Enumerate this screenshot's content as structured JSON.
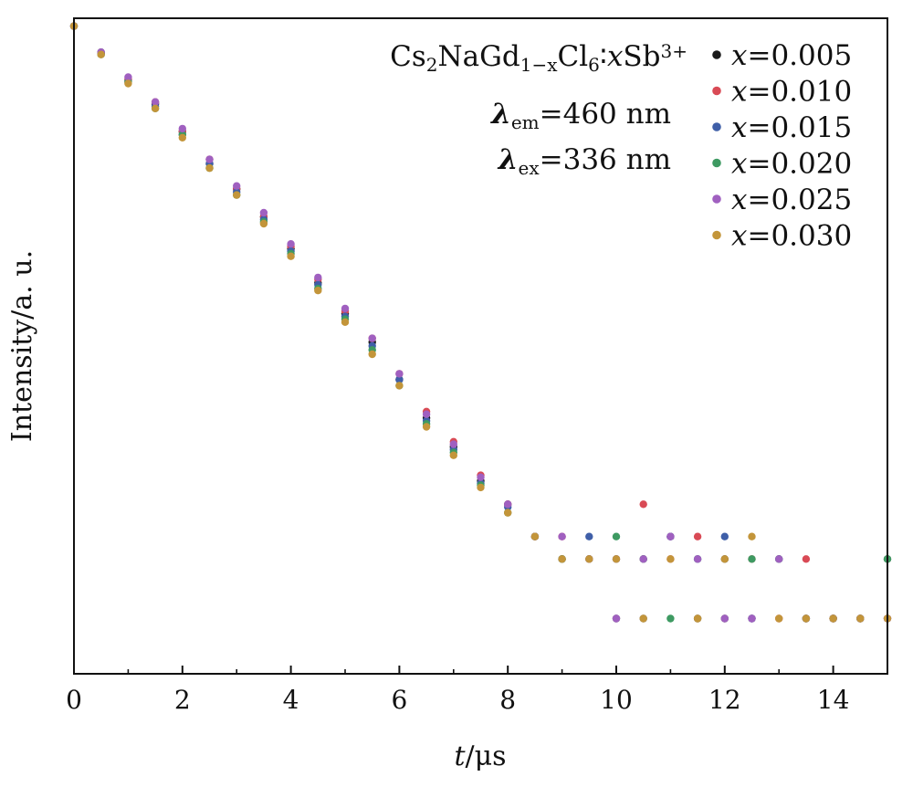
{
  "chart_data": {
    "type": "scatter",
    "title": "",
    "xlabel": "t/μs",
    "xlabel_var": "t",
    "xlabel_unit": "/μs",
    "ylabel": "Intensity/a. u.",
    "xlim": [
      0,
      15
    ],
    "xticks": [
      0,
      2,
      4,
      6,
      8,
      10,
      12,
      14
    ],
    "xtick_labels": [
      "0",
      "2",
      "4",
      "6",
      "8",
      "10",
      "12",
      "14"
    ],
    "yscale": "log",
    "ylim": [
      0.0004,
      1.1
    ],
    "yticks_labeled": false,
    "grid": false,
    "legend_position": "top-right",
    "annotations": [
      {
        "id": "formula",
        "parts": [
          {
            "t": "Cs",
            "s": "n"
          },
          {
            "t": "2",
            "s": "sub"
          },
          {
            "t": "NaGd",
            "s": "n"
          },
          {
            "t": "1−x",
            "s": "sub"
          },
          {
            "t": "Cl",
            "s": "n"
          },
          {
            "t": "6",
            "s": "sub"
          },
          {
            "t": "∶",
            "s": "n"
          },
          {
            "t": "x",
            "s": "it"
          },
          {
            "t": "Sb",
            "s": "n"
          },
          {
            "t": "3+",
            "s": "sup"
          }
        ]
      },
      {
        "id": "lambda-em",
        "parts": [
          {
            "t": "λ",
            "s": "bi"
          },
          {
            "t": "em",
            "s": "sub"
          },
          {
            "t": "=460 nm",
            "s": "n"
          }
        ]
      },
      {
        "id": "lambda-ex",
        "parts": [
          {
            "t": "λ",
            "s": "bi"
          },
          {
            "t": "ex",
            "s": "sub"
          },
          {
            "t": "=336 nm",
            "s": "n"
          }
        ]
      }
    ],
    "series": [
      {
        "name": "x=0.005",
        "var": "x",
        "val": "=0.005",
        "color": "#1a1a1a",
        "x": [
          0.0,
          0.5,
          1.0,
          1.5,
          2.0,
          2.5,
          3.0,
          3.5,
          4.0,
          4.5,
          5.0,
          5.5,
          6.0,
          6.5,
          7.0,
          7.5,
          8.0,
          8.5,
          9.0,
          9.5,
          10.0,
          10.5,
          11.0,
          11.5,
          12.0,
          12.5,
          13.0,
          13.5,
          14.0,
          14.5,
          15.0
        ],
        "y": [
          1.0,
          0.73,
          0.52,
          0.39,
          0.28,
          0.19,
          0.14,
          0.1,
          0.068,
          0.045,
          0.031,
          0.022,
          0.014,
          0.0088,
          0.0062,
          0.0041,
          0.0031,
          0.0021,
          0.0016,
          0.0016,
          0.00078,
          0.0016,
          0.0021,
          0.00078,
          0.0016,
          0.00078,
          0.0016,
          0.00078,
          0.00078,
          0.00078,
          0.0016
        ]
      },
      {
        "name": "x=0.010",
        "var": "x",
        "val": "=0.010",
        "color": "#d94a55",
        "x": [
          0.0,
          0.5,
          1.0,
          1.5,
          2.0,
          2.5,
          3.0,
          3.5,
          4.0,
          4.5,
          5.0,
          5.5,
          6.0,
          6.5,
          7.0,
          7.5,
          8.0,
          8.5,
          9.0,
          9.5,
          10.0,
          10.5,
          11.0,
          11.5,
          12.0,
          12.5,
          13.0,
          13.5,
          14.0,
          14.5,
          15.0
        ],
        "y": [
          1.0,
          0.72,
          0.53,
          0.4,
          0.28,
          0.2,
          0.14,
          0.1,
          0.07,
          0.047,
          0.032,
          0.023,
          0.015,
          0.0095,
          0.0066,
          0.0044,
          0.0031,
          0.0021,
          0.0021,
          0.0016,
          0.0016,
          0.0031,
          0.0016,
          0.0021,
          0.00078,
          0.0016,
          0.00078,
          0.0016,
          0.00078,
          0.00078,
          0.00078
        ]
      },
      {
        "name": "x=0.015",
        "var": "x",
        "val": "=0.015",
        "color": "#3f5fa8",
        "x": [
          0.0,
          0.5,
          1.0,
          1.5,
          2.0,
          2.5,
          3.0,
          3.5,
          4.0,
          4.5,
          5.0,
          5.5,
          6.0,
          6.5,
          7.0,
          7.5,
          8.0,
          8.5,
          9.0,
          9.5,
          10.0,
          10.5,
          11.0,
          11.5,
          12.0,
          12.5,
          13.0,
          13.5,
          14.0,
          14.5,
          15.0
        ],
        "y": [
          1.0,
          0.72,
          0.51,
          0.38,
          0.27,
          0.19,
          0.135,
          0.097,
          0.066,
          0.044,
          0.03,
          0.021,
          0.014,
          0.0085,
          0.006,
          0.004,
          0.003,
          0.0021,
          0.0016,
          0.0021,
          0.0016,
          0.00078,
          0.0021,
          0.0016,
          0.0021,
          0.00078,
          0.0016,
          0.00078,
          0.00078,
          0.00078,
          0.00078
        ]
      },
      {
        "name": "x=0.020",
        "var": "x",
        "val": "=0.020",
        "color": "#3e9a62",
        "x": [
          0.0,
          0.5,
          1.0,
          1.5,
          2.0,
          2.5,
          3.0,
          3.5,
          4.0,
          4.5,
          5.0,
          5.5,
          6.0,
          6.5,
          7.0,
          7.5,
          8.0,
          8.5,
          9.0,
          9.5,
          10.0,
          10.5,
          11.0,
          11.5,
          12.0,
          12.5,
          13.0,
          13.5,
          14.0,
          14.5,
          15.0
        ],
        "y": [
          1.0,
          0.71,
          0.51,
          0.37,
          0.27,
          0.18,
          0.13,
          0.094,
          0.064,
          0.042,
          0.029,
          0.02,
          0.013,
          0.0082,
          0.0058,
          0.0039,
          0.0028,
          0.0021,
          0.0016,
          0.0016,
          0.0021,
          0.0016,
          0.00078,
          0.0016,
          0.00078,
          0.0016,
          0.0016,
          0.00078,
          0.00078,
          0.00078,
          0.0016
        ]
      },
      {
        "name": "x=0.025",
        "var": "x",
        "val": "=0.025",
        "color": "#a060c0",
        "x": [
          0.0,
          0.5,
          1.0,
          1.5,
          2.0,
          2.5,
          3.0,
          3.5,
          4.0,
          4.5,
          5.0,
          5.5,
          6.0,
          6.5,
          7.0,
          7.5,
          8.0,
          8.5,
          9.0,
          9.5,
          10.0,
          10.5,
          11.0,
          11.5,
          12.0,
          12.5,
          13.0,
          13.5,
          14.0,
          14.5,
          15.0
        ],
        "y": [
          1.0,
          0.73,
          0.54,
          0.4,
          0.29,
          0.2,
          0.145,
          0.105,
          0.072,
          0.048,
          0.033,
          0.023,
          0.015,
          0.0092,
          0.0064,
          0.0043,
          0.0031,
          0.0021,
          0.0021,
          0.0016,
          0.00078,
          0.0016,
          0.0021,
          0.0016,
          0.00078,
          0.00078,
          0.0016,
          0.00078,
          0.00078,
          0.00078,
          0.00078
        ]
      },
      {
        "name": "x=0.030",
        "var": "x",
        "val": "=0.030",
        "color": "#c3953a",
        "x": [
          0.0,
          0.5,
          1.0,
          1.5,
          2.0,
          2.5,
          3.0,
          3.5,
          4.0,
          4.5,
          5.0,
          5.5,
          6.0,
          6.5,
          7.0,
          7.5,
          8.0,
          8.5,
          9.0,
          9.5,
          10.0,
          10.5,
          11.0,
          11.5,
          12.0,
          12.5,
          13.0,
          13.5,
          14.0,
          14.5,
          15.0
        ],
        "y": [
          1.0,
          0.71,
          0.5,
          0.37,
          0.26,
          0.18,
          0.13,
          0.092,
          0.062,
          0.041,
          0.028,
          0.019,
          0.013,
          0.0079,
          0.0056,
          0.0038,
          0.0028,
          0.0021,
          0.0016,
          0.0016,
          0.0016,
          0.00078,
          0.0016,
          0.00078,
          0.0016,
          0.0021,
          0.00078,
          0.00078,
          0.00078,
          0.00078,
          0.00078
        ]
      }
    ]
  }
}
